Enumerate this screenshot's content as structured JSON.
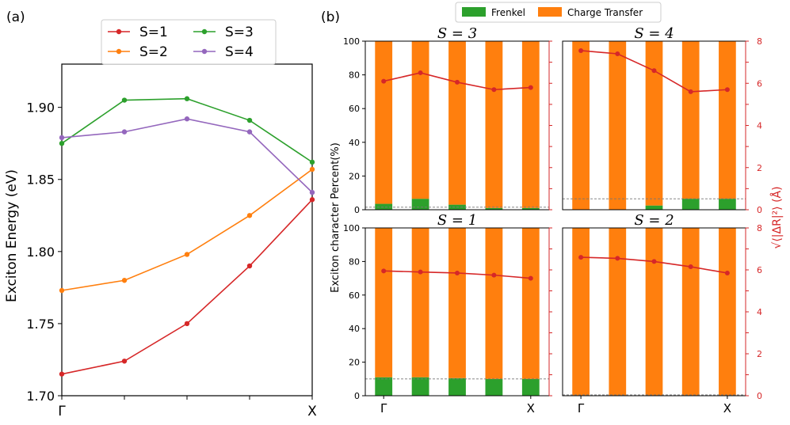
{
  "chart_data": [
    {
      "type": "line",
      "panel_label": "(a)",
      "x": [
        "Γ",
        "",
        "",
        "",
        "X"
      ],
      "xlabel": "",
      "ylabel": "Exciton Energy (eV)",
      "ylim": [
        1.7,
        1.93
      ],
      "yticks": [
        "1.70",
        "1.75",
        "1.80",
        "1.85",
        "1.90"
      ],
      "legend_position": "top-center",
      "series": [
        {
          "name": "S=1",
          "color": "#d62728",
          "values": [
            1.715,
            1.724,
            1.75,
            1.79,
            1.836
          ]
        },
        {
          "name": "S=2",
          "color": "#ff7f0e",
          "values": [
            1.773,
            1.78,
            1.798,
            1.825,
            1.857
          ]
        },
        {
          "name": "S=3",
          "color": "#2ca02c",
          "values": [
            1.875,
            1.905,
            1.906,
            1.891,
            1.862
          ]
        },
        {
          "name": "S=4",
          "color": "#9467bd",
          "values": [
            1.879,
            1.883,
            1.892,
            1.883,
            1.841
          ]
        }
      ]
    },
    {
      "type": "bar",
      "panel_label": "(b)",
      "ylabel": "Exciton character Percent(%)",
      "y2label": "√⟨|ΔR|²⟩ (Å)",
      "ylim": [
        0,
        100
      ],
      "y2lim": [
        0,
        8
      ],
      "yticks": [
        "0",
        "20",
        "40",
        "60",
        "80",
        "100"
      ],
      "y2ticks": [
        "0",
        "2",
        "4",
        "6",
        "8"
      ],
      "xticks": [
        "Γ",
        "X"
      ],
      "legend": [
        {
          "name": "Frenkel",
          "color": "#2ca02c"
        },
        {
          "name": "Charge Transfer",
          "color": "#ff7f0e"
        }
      ],
      "line_color": "#d62728",
      "panels": [
        {
          "title": "S = 3",
          "frenkel": [
            3.5,
            6.5,
            3,
            1,
            1
          ],
          "charge_transfer": [
            96.5,
            93.5,
            97,
            99,
            99
          ],
          "distance": [
            6.1,
            6.5,
            6.05,
            5.7,
            5.8
          ],
          "dashed_y": 1.5
        },
        {
          "title": "S = 4",
          "frenkel": [
            0,
            0,
            2.5,
            6.5,
            6.5
          ],
          "charge_transfer": [
            100,
            100,
            97.5,
            93.5,
            93.5
          ],
          "distance": [
            7.55,
            7.4,
            6.6,
            5.6,
            5.7
          ],
          "dashed_y": 6.5
        },
        {
          "title": "S = 1",
          "frenkel": [
            11,
            11,
            10.5,
            10,
            10
          ],
          "charge_transfer": [
            89,
            89,
            89.5,
            90,
            90
          ],
          "distance": [
            5.95,
            5.9,
            5.85,
            5.75,
            5.6
          ],
          "dashed_y": 10
        },
        {
          "title": "S = 2",
          "frenkel": [
            0,
            0,
            0,
            0,
            0
          ],
          "charge_transfer": [
            100,
            100,
            100,
            100,
            100
          ],
          "distance": [
            6.6,
            6.55,
            6.4,
            6.15,
            5.85
          ],
          "dashed_y": 0.5
        }
      ]
    }
  ]
}
